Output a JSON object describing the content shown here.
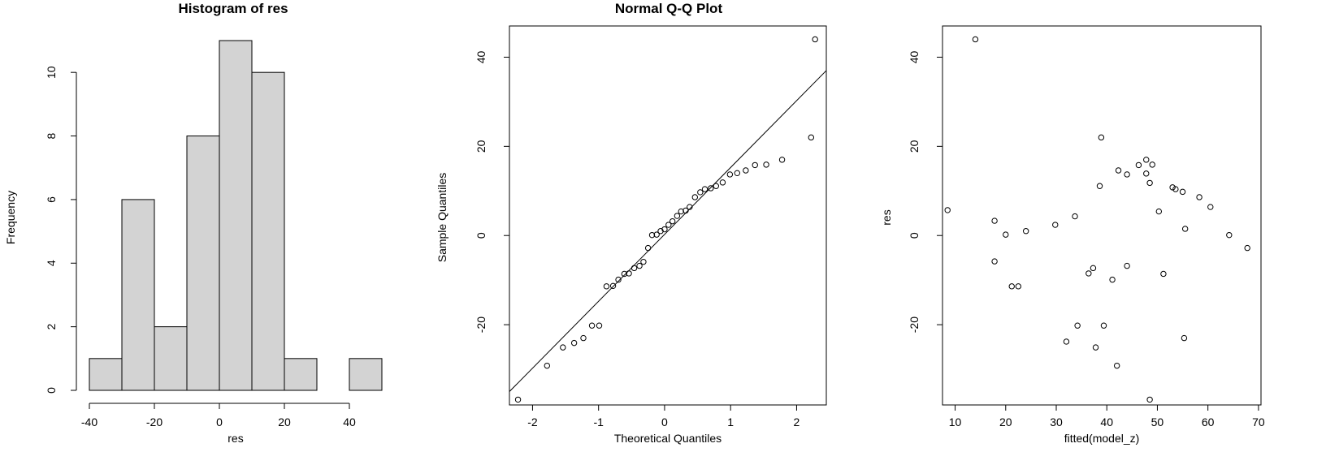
{
  "chart_data": [
    {
      "type": "bar",
      "title": "Histogram of res",
      "xlabel": "res",
      "ylabel": "Frequency",
      "bins": [
        [
          -40,
          -30
        ],
        [
          -30,
          -20
        ],
        [
          -20,
          -10
        ],
        [
          -10,
          0
        ],
        [
          0,
          10
        ],
        [
          10,
          20
        ],
        [
          20,
          30
        ],
        [
          30,
          40
        ],
        [
          40,
          50
        ]
      ],
      "values": [
        1,
        6,
        2,
        8,
        11,
        10,
        1,
        0,
        1
      ],
      "xlim": [
        -40,
        50
      ],
      "ylim": [
        0,
        11
      ],
      "xticks": [
        -40,
        -20,
        0,
        20,
        40
      ],
      "xtick_labels": [
        "-40",
        "-20",
        "0",
        "20",
        "40"
      ],
      "yticks": [
        0,
        2,
        4,
        6,
        8,
        10
      ],
      "ytick_labels": [
        "0",
        "2",
        "4",
        "6",
        "8",
        "10"
      ],
      "bar_color": "#d3d3d3",
      "grid": false
    },
    {
      "type": "scatter",
      "title": "Normal Q-Q Plot",
      "xlabel": "Theoretical Quantiles",
      "ylabel": "Sample Quantiles",
      "xlim": [
        -2.35,
        2.45
      ],
      "ylim": [
        -38,
        47
      ],
      "xticks": [
        -2,
        -1,
        0,
        1,
        2
      ],
      "xtick_labels": [
        "-2",
        "-1",
        "0",
        "1",
        "2"
      ],
      "yticks": [
        -20,
        0,
        20,
        40
      ],
      "ytick_labels": [
        "-20",
        "0",
        "20",
        "40"
      ],
      "points": [
        [
          -2.22,
          -36.8
        ],
        [
          -1.78,
          -29.2
        ],
        [
          -1.54,
          -25.1
        ],
        [
          -1.37,
          -24.1
        ],
        [
          -1.23,
          -23.0
        ],
        [
          -1.1,
          -20.2
        ],
        [
          -0.99,
          -20.2
        ],
        [
          -0.88,
          -11.4
        ],
        [
          -0.78,
          -11.3
        ],
        [
          -0.7,
          -9.9
        ],
        [
          -0.61,
          -8.6
        ],
        [
          -0.54,
          -8.5
        ],
        [
          -0.46,
          -7.3
        ],
        [
          -0.38,
          -6.8
        ],
        [
          -0.32,
          -5.9
        ],
        [
          -0.25,
          -2.8
        ],
        [
          -0.19,
          0.1
        ],
        [
          -0.12,
          0.2
        ],
        [
          -0.06,
          1.0
        ],
        [
          0.0,
          1.4
        ],
        [
          0.06,
          2.4
        ],
        [
          0.12,
          3.2
        ],
        [
          0.19,
          4.4
        ],
        [
          0.25,
          5.4
        ],
        [
          0.32,
          5.6
        ],
        [
          0.38,
          6.4
        ],
        [
          0.46,
          8.6
        ],
        [
          0.54,
          9.7
        ],
        [
          0.61,
          10.4
        ],
        [
          0.7,
          10.6
        ],
        [
          0.78,
          11.1
        ],
        [
          0.88,
          11.9
        ],
        [
          0.99,
          13.7
        ],
        [
          1.1,
          14.0
        ],
        [
          1.23,
          14.6
        ],
        [
          1.37,
          15.8
        ],
        [
          1.54,
          15.9
        ],
        [
          1.78,
          17.0
        ],
        [
          2.22,
          22.0
        ],
        [
          2.28,
          44.0
        ]
      ],
      "reference_line": [
        [
          -2.35,
          -35.0
        ],
        [
          2.45,
          37.0
        ]
      ],
      "grid": false
    },
    {
      "type": "scatter",
      "title": "",
      "xlabel": "fitted(model_z)",
      "ylabel": "res",
      "xlim": [
        7.5,
        70.5
      ],
      "ylim": [
        -38,
        47
      ],
      "xticks": [
        10,
        20,
        30,
        40,
        50,
        60,
        70
      ],
      "xtick_labels": [
        "10",
        "20",
        "30",
        "40",
        "50",
        "60",
        "70"
      ],
      "yticks": [
        -20,
        0,
        20,
        40
      ],
      "ytick_labels": [
        "-20",
        "0",
        "20",
        "40"
      ],
      "points": [
        [
          8.5,
          5.7
        ],
        [
          14.0,
          44.0
        ],
        [
          17.8,
          3.3
        ],
        [
          17.8,
          -5.8
        ],
        [
          20.0,
          0.2
        ],
        [
          21.2,
          -11.4
        ],
        [
          22.5,
          -11.4
        ],
        [
          24.0,
          1.0
        ],
        [
          29.8,
          2.4
        ],
        [
          32.0,
          -23.8
        ],
        [
          33.7,
          4.3
        ],
        [
          34.2,
          -20.2
        ],
        [
          36.4,
          -8.5
        ],
        [
          37.3,
          -7.3
        ],
        [
          37.8,
          -25.1
        ],
        [
          38.6,
          11.1
        ],
        [
          38.9,
          22.0
        ],
        [
          39.4,
          -20.2
        ],
        [
          41.1,
          -9.9
        ],
        [
          42.0,
          -29.2
        ],
        [
          42.3,
          14.6
        ],
        [
          44.0,
          13.7
        ],
        [
          44.0,
          -6.8
        ],
        [
          46.3,
          15.8
        ],
        [
          47.8,
          17.0
        ],
        [
          47.8,
          13.9
        ],
        [
          48.5,
          11.8
        ],
        [
          48.5,
          -36.8
        ],
        [
          49.0,
          15.9
        ],
        [
          50.3,
          5.4
        ],
        [
          51.2,
          -8.6
        ],
        [
          53.0,
          10.8
        ],
        [
          53.6,
          10.4
        ],
        [
          55.0,
          9.8
        ],
        [
          55.3,
          -23.0
        ],
        [
          55.5,
          1.5
        ],
        [
          58.3,
          8.6
        ],
        [
          60.5,
          6.4
        ],
        [
          64.2,
          0.1
        ],
        [
          67.8,
          -2.8
        ]
      ],
      "grid": false
    }
  ]
}
